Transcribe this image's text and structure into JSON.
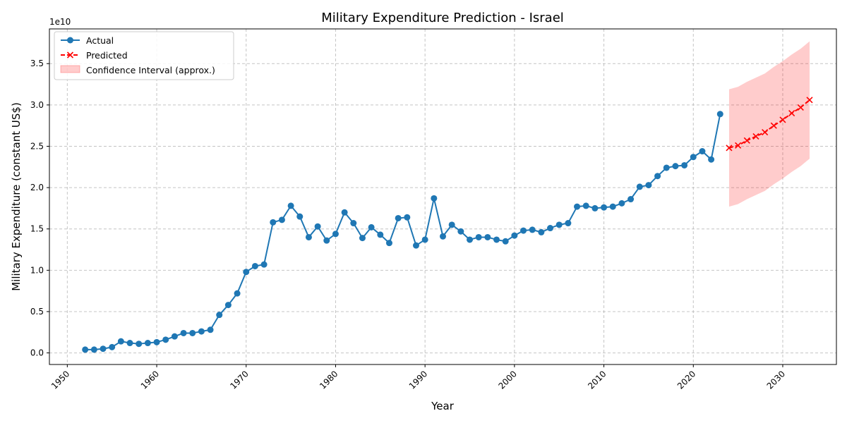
{
  "chart_data": {
    "type": "line",
    "title": "Military Expenditure Prediction - Israel",
    "xlabel": "Year",
    "ylabel": "Military Expenditure (constant US$)",
    "y_offset_label": "1e10",
    "xlim": [
      1948,
      2036
    ],
    "ylim": [
      -0.14,
      3.92
    ],
    "y_unit_scale": 10000000000,
    "x_ticks": [
      1950,
      1960,
      1970,
      1980,
      1990,
      2000,
      2010,
      2020,
      2030
    ],
    "y_ticks": [
      0.0,
      0.5,
      1.0,
      1.5,
      2.0,
      2.5,
      3.0,
      3.5
    ],
    "y_tick_labels": [
      "0.0",
      "0.5",
      "1.0",
      "1.5",
      "2.0",
      "2.5",
      "3.0",
      "3.5"
    ],
    "grid": true,
    "legend_position": "top-left",
    "series": [
      {
        "name": "Actual",
        "color": "#1f77b4",
        "marker": "circle",
        "x": [
          1952,
          1953,
          1954,
          1955,
          1956,
          1957,
          1958,
          1959,
          1960,
          1961,
          1962,
          1963,
          1964,
          1965,
          1966,
          1967,
          1968,
          1969,
          1970,
          1971,
          1972,
          1973,
          1974,
          1975,
          1976,
          1977,
          1978,
          1979,
          1980,
          1981,
          1982,
          1983,
          1984,
          1985,
          1986,
          1987,
          1988,
          1989,
          1990,
          1991,
          1992,
          1993,
          1994,
          1995,
          1996,
          1997,
          1998,
          1999,
          2000,
          2001,
          2002,
          2003,
          2004,
          2005,
          2006,
          2007,
          2008,
          2009,
          2010,
          2011,
          2012,
          2013,
          2014,
          2015,
          2016,
          2017,
          2018,
          2019,
          2020,
          2021,
          2022,
          2023
        ],
        "values": [
          0.04,
          0.04,
          0.05,
          0.07,
          0.14,
          0.12,
          0.11,
          0.12,
          0.13,
          0.16,
          0.2,
          0.24,
          0.24,
          0.26,
          0.28,
          0.46,
          0.58,
          0.72,
          0.98,
          1.05,
          1.07,
          1.58,
          1.61,
          1.78,
          1.65,
          1.4,
          1.53,
          1.36,
          1.44,
          1.7,
          1.57,
          1.39,
          1.52,
          1.43,
          1.33,
          1.63,
          1.64,
          1.3,
          1.37,
          1.87,
          1.41,
          1.55,
          1.47,
          1.37,
          1.4,
          1.4,
          1.37,
          1.35,
          1.42,
          1.48,
          1.49,
          1.46,
          1.51,
          1.55,
          1.57,
          1.77,
          1.78,
          1.75,
          1.76,
          1.77,
          1.81,
          1.86,
          2.01,
          2.03,
          2.14,
          2.24,
          2.26,
          2.27,
          2.37,
          2.44,
          2.34,
          2.89
        ]
      },
      {
        "name": "Predicted",
        "color": "#ff0000",
        "marker": "x",
        "x": [
          2024,
          2025,
          2026,
          2027,
          2028,
          2029,
          2030,
          2031,
          2032,
          2033
        ],
        "values": [
          2.48,
          2.51,
          2.57,
          2.62,
          2.67,
          2.75,
          2.82,
          2.9,
          2.97,
          3.06
        ]
      }
    ],
    "confidence_band": {
      "name": "Confidence Interval (approx.)",
      "color": "#ff0000",
      "opacity": 0.2,
      "x": [
        2024,
        2025,
        2026,
        2027,
        2028,
        2029,
        2030,
        2031,
        2032,
        2033
      ],
      "lower": [
        1.77,
        1.8,
        1.86,
        1.91,
        1.96,
        2.04,
        2.11,
        2.19,
        2.26,
        2.35
      ],
      "upper": [
        3.19,
        3.22,
        3.28,
        3.33,
        3.38,
        3.46,
        3.53,
        3.61,
        3.68,
        3.77
      ]
    }
  }
}
